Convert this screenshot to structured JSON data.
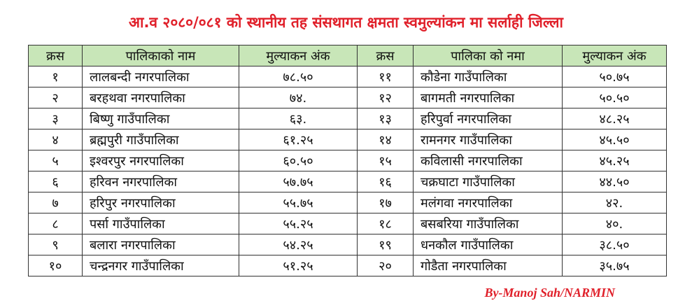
{
  "header": {
    "title": "आ.व २०८०/०८१ को स्थानीय तह संसथागत क्षमता स्वमुल्यांकन मा सर्लाही जिल्ला"
  },
  "table": {
    "columns": [
      "क्रस",
      "पालिकाको नाम",
      "मुल्याकन अंक",
      "क्रस",
      "पालिका को नमा",
      "मुल्याकन अंक"
    ],
    "rows": [
      [
        "१",
        "लालबन्दी नगरपालिका",
        "७८.५०",
        "११",
        "कौडेना गाउँपालिका",
        "५०.७५"
      ],
      [
        "२",
        "बरहथवा नगरपालिका",
        "७४.",
        "१२",
        "बागमती नगरपालिका",
        "५०.५०"
      ],
      [
        "३",
        "बिष्णु गाउँपालिका",
        "६३.",
        "१३",
        "हरिपुर्वा नगरपालिका",
        "४८.२५"
      ],
      [
        "४",
        "ब्रह्मपुरी गाउँपालिका",
        "६१.२५",
        "१४",
        "रामनगर गाउँपालिका",
        "४५.५०"
      ],
      [
        "५",
        "इश्वरपुर नगरपालिका",
        "६०.५०",
        "१५",
        "कविलासी नगरपालिका",
        "४५.२५"
      ],
      [
        "६",
        "हरिवन नगरपालिका",
        "५७.७५",
        "१६",
        "चक्रघाटा गाउँपालिका",
        "४४.५०"
      ],
      [
        "७",
        "हरिपुर नगरपालिका",
        "५५.७५",
        "१७",
        "मलंगवा नगरपालिका",
        "४२."
      ],
      [
        "८",
        "पर्सा गाउँपालिका",
        "५५.२५",
        "१८",
        "बसबरिया गाउँपालिका",
        "४०."
      ],
      [
        "९",
        "बलारा नगरपालिका",
        "५४.२५",
        "१९",
        "धनकौल गाउँपालिका",
        "३८.५०"
      ],
      [
        "१०",
        "चन्द्रनगर गाउँपालिका",
        "५१.२५",
        "२०",
        "गोडैता नगरपालिका",
        "३५.७५"
      ]
    ]
  },
  "footer": {
    "credit": "By-Manoj Sah/NARMIN"
  }
}
